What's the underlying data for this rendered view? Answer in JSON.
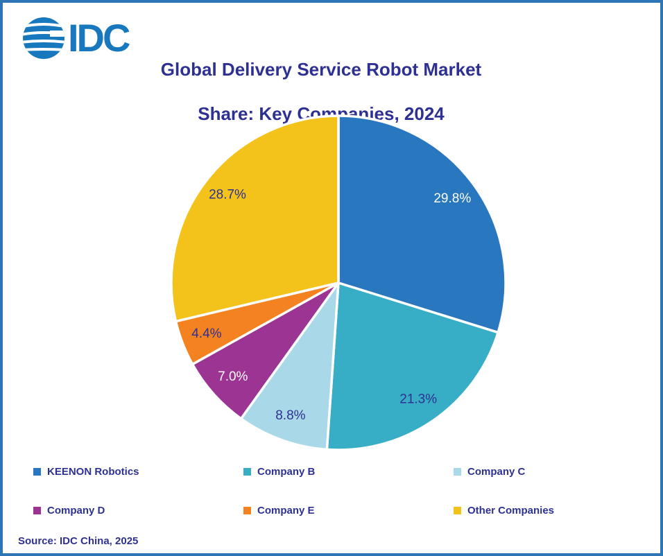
{
  "logo": {
    "text": "IDC"
  },
  "header": {
    "title_line1": "Global Delivery Service Robot Market",
    "title_line2": "Share: Key Companies, 2024"
  },
  "footer": {
    "source": "Source: IDC China, 2025"
  },
  "colors": {
    "page_border": "#2E75B6",
    "logo_blue": "#1878BE",
    "title_text": "#2E3192",
    "legend_text": "#2E3192",
    "slice_separator": "#FFFFFF"
  },
  "chart_data": {
    "type": "pie",
    "title": "Global Delivery Service Robot Market Share: Key Companies, 2024",
    "start_angle_deg": 0,
    "direction": "clockwise",
    "legend_position": "bottom",
    "slices": [
      {
        "label": "KEENON Robotics",
        "value": 29.8,
        "display": "29.8%",
        "color": "#2977BE",
        "label_color": "#FFFFFF"
      },
      {
        "label": "Company B",
        "value": 21.3,
        "display": "21.3%",
        "color": "#37AEC5",
        "label_color": "#2E3192"
      },
      {
        "label": "Company C",
        "value": 8.8,
        "display": "8.8%",
        "color": "#A9D9E8",
        "label_color": "#2E3192"
      },
      {
        "label": "Company D",
        "value": 7.0,
        "display": "7.0%",
        "color": "#9C3494",
        "label_color": "#FFFFFF"
      },
      {
        "label": "Company E",
        "value": 4.4,
        "display": "4.4%",
        "color": "#F58220",
        "label_color": "#2E3192"
      },
      {
        "label": "Other Companies",
        "value": 28.7,
        "display": "28.7%",
        "color": "#F3C31B",
        "label_color": "#2E3192"
      }
    ]
  }
}
